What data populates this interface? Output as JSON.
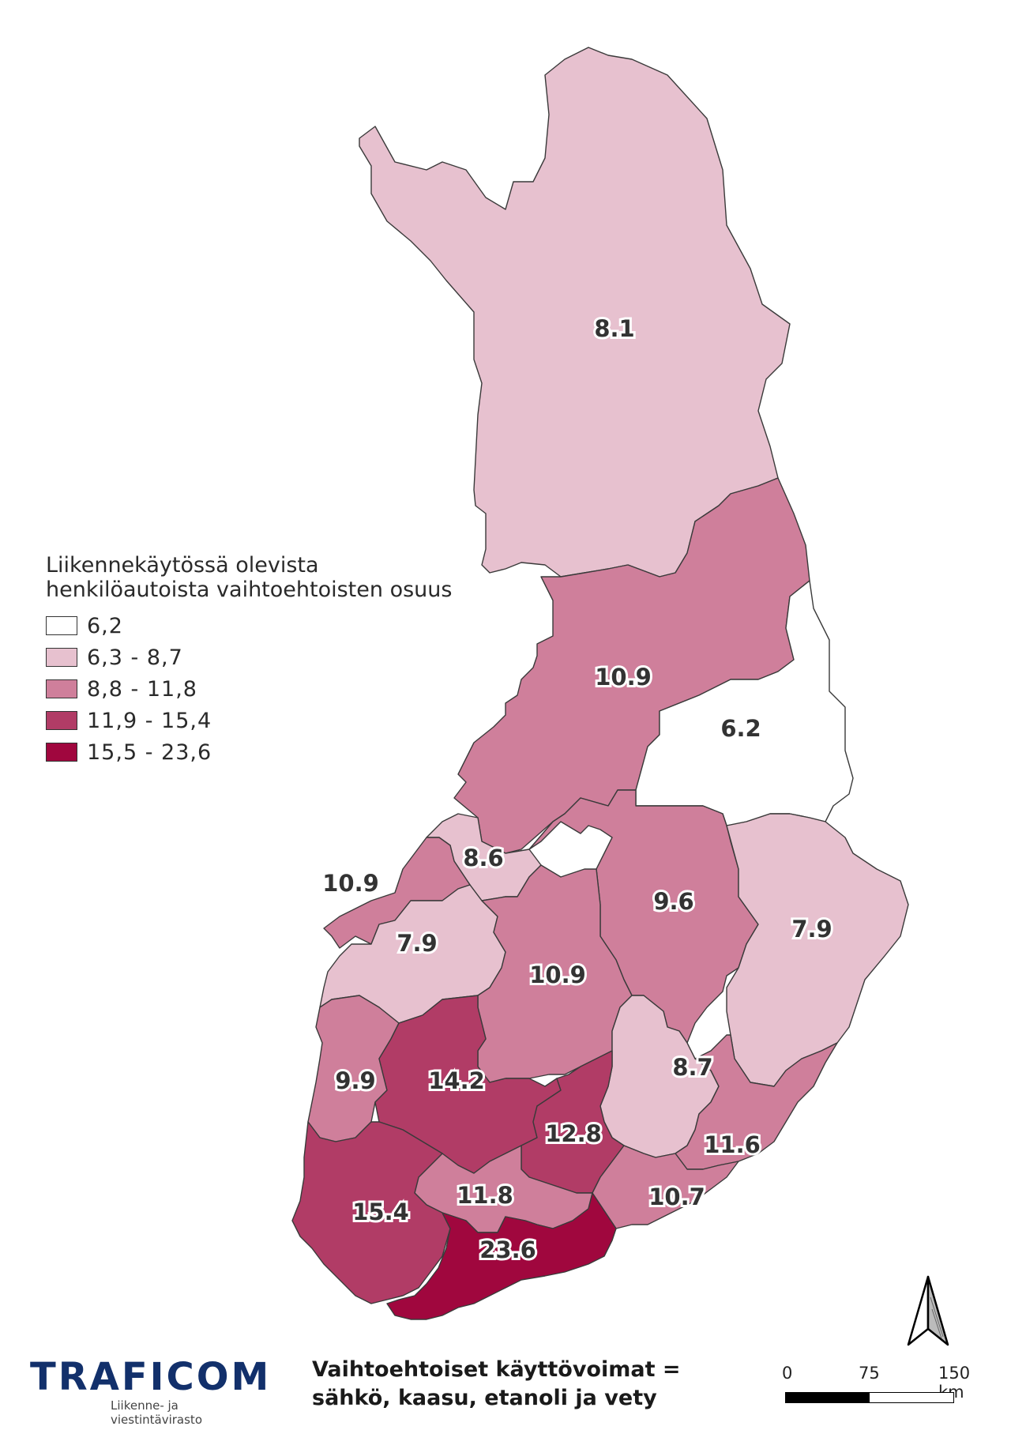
{
  "legend": {
    "title": "Liikennekäytössä olevista henkilöautoista vaihtoehtoisten osuus",
    "classes": [
      {
        "label": "6,2",
        "color": "#ffffff"
      },
      {
        "label": "6,3 - 8,7",
        "color": "#e7c1cf"
      },
      {
        "label": "8,8 - 11,8",
        "color": "#cf7f9b"
      },
      {
        "label": "11,9 - 15,4",
        "color": "#b13c66"
      },
      {
        "label": "15,5 - 23,6",
        "color": "#a0073e"
      }
    ]
  },
  "regions": [
    {
      "label": "8.1",
      "value": 8.1,
      "class": 1
    },
    {
      "label": "10.9",
      "value": 10.9,
      "class": 2
    },
    {
      "label": "6.2",
      "value": 6.2,
      "class": 0
    },
    {
      "label": "8.6",
      "value": 8.6,
      "class": 1
    },
    {
      "label": "10.9",
      "value": 10.9,
      "class": 2
    },
    {
      "label": "7.9",
      "value": 7.9,
      "class": 1
    },
    {
      "label": "9.6",
      "value": 9.6,
      "class": 2
    },
    {
      "label": "7.9",
      "value": 7.9,
      "class": 1
    },
    {
      "label": "10.9",
      "value": 10.9,
      "class": 2
    },
    {
      "label": "9.9",
      "value": 9.9,
      "class": 2
    },
    {
      "label": "14.2",
      "value": 14.2,
      "class": 3
    },
    {
      "label": "8.7",
      "value": 8.7,
      "class": 1
    },
    {
      "label": "12.8",
      "value": 12.8,
      "class": 3
    },
    {
      "label": "11.6",
      "value": 11.6,
      "class": 2
    },
    {
      "label": "11.8",
      "value": 11.8,
      "class": 2
    },
    {
      "label": "15.4",
      "value": 15.4,
      "class": 3
    },
    {
      "label": "10.7",
      "value": 10.7,
      "class": 2
    },
    {
      "label": "23.6",
      "value": 23.6,
      "class": 4
    }
  ],
  "logo": {
    "name": "TRAFICOM",
    "subtitle": "Liikenne- ja viestintävirasto"
  },
  "footnote": {
    "line1": "Vaihtoehtoiset käyttövoimat =",
    "line2": "sähkö, kaasu, etanoli ja vety"
  },
  "scale_bar": {
    "ticks": [
      "0",
      "75",
      "150 km"
    ]
  },
  "north_arrow": "north-arrow-icon"
}
